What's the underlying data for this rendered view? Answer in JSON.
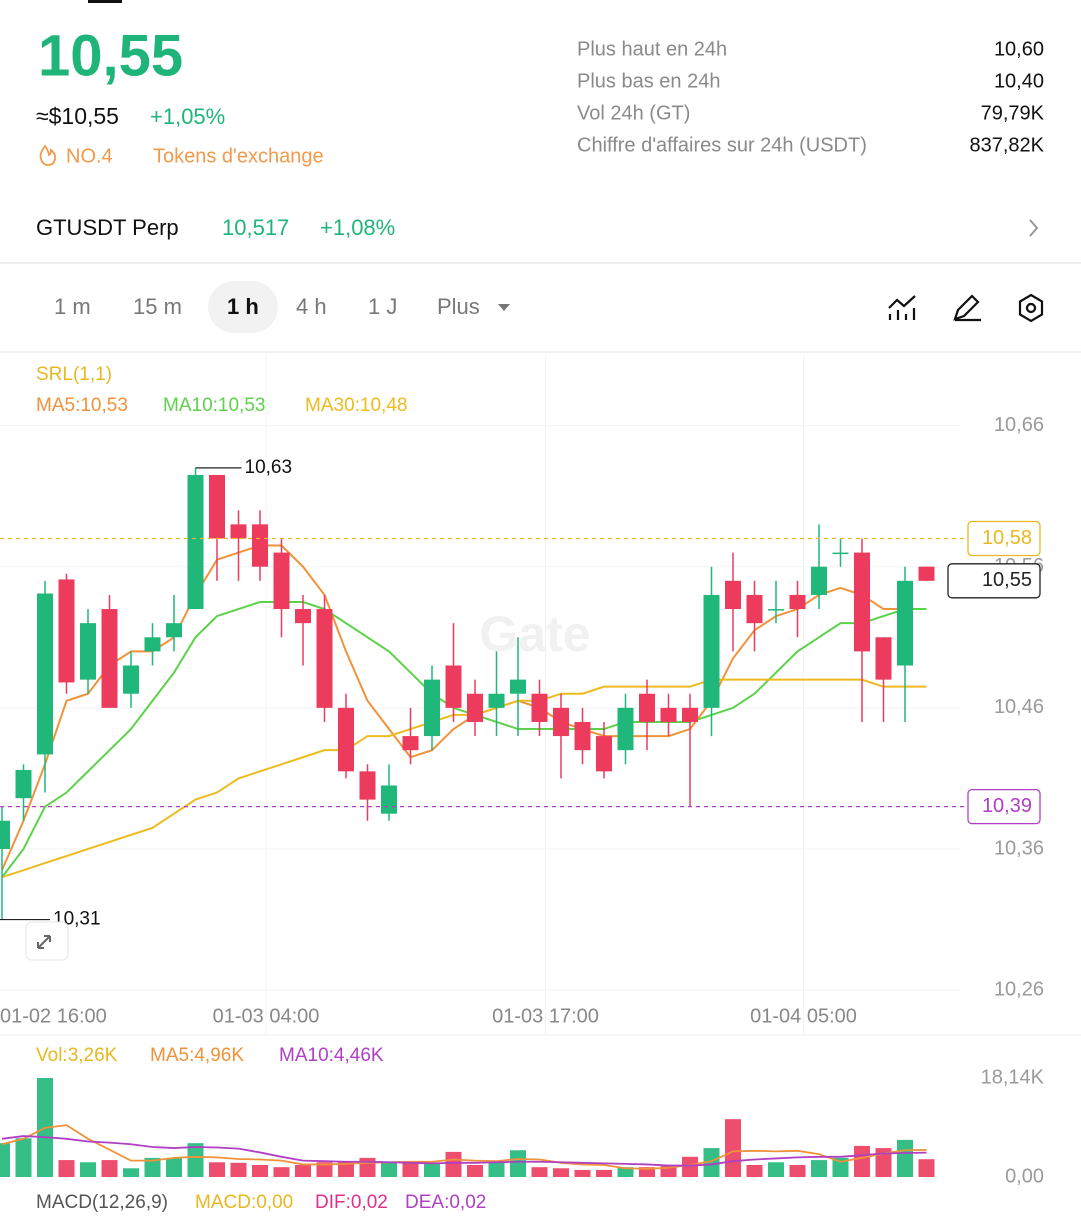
{
  "header": {
    "price": "10,55",
    "usd": "≈$10,55",
    "change": "+1,05%",
    "rank": "NO.4",
    "category": "Tokens d'exchange"
  },
  "stats": [
    {
      "label": "Plus haut en 24h",
      "value": "10,60"
    },
    {
      "label": "Plus bas en 24h",
      "value": "10,40"
    },
    {
      "label": "Vol 24h (GT)",
      "value": "79,79K"
    },
    {
      "label": "Chiffre d'affaires sur 24h (USDT)",
      "value": "837,82K"
    }
  ],
  "perp": {
    "name": "GTUSDT Perp",
    "price": "10,517",
    "change": "+1,08%"
  },
  "intervals": [
    "1 m",
    "15 m",
    "1 h",
    "4 h",
    "1 J",
    "Plus"
  ],
  "selected_interval": "1 h",
  "chart_data": {
    "type": "candlestick",
    "watermark": "Gate",
    "indicator": "SRL(1,1)",
    "up_color": "#20b77a",
    "down_color": "#ec3b5d",
    "grid": true,
    "categories": [
      "01-02 16:00",
      null,
      null,
      null,
      null,
      null,
      null,
      null,
      null,
      null,
      null,
      null,
      "01-03 04:00",
      null,
      null,
      null,
      null,
      null,
      null,
      null,
      null,
      null,
      null,
      null,
      null,
      "01-03 17:00",
      null,
      null,
      null,
      null,
      null,
      null,
      null,
      null,
      null,
      null,
      null,
      "01-04 05:00",
      null,
      null,
      null,
      null,
      null,
      null
    ],
    "open": [
      10.36,
      10.396,
      10.427,
      10.551,
      10.48,
      10.53,
      10.47,
      10.5,
      10.51,
      10.53,
      10.625,
      10.59,
      10.59,
      10.57,
      10.53,
      10.53,
      10.46,
      10.415,
      10.385,
      10.44,
      10.44,
      10.49,
      10.47,
      10.46,
      10.47,
      10.47,
      10.46,
      10.45,
      10.44,
      10.43,
      10.47,
      10.46,
      10.46,
      10.46,
      10.55,
      10.54,
      10.53,
      10.54,
      10.54,
      10.57,
      10.57,
      10.51,
      10.49,
      10.56
    ],
    "high": [
      10.39,
      10.42,
      10.55,
      10.555,
      10.53,
      10.54,
      10.5,
      10.52,
      10.54,
      10.63,
      10.625,
      10.6,
      10.6,
      10.58,
      10.54,
      10.54,
      10.47,
      10.42,
      10.42,
      10.46,
      10.49,
      10.52,
      10.48,
      10.5,
      10.51,
      10.48,
      10.47,
      10.46,
      10.45,
      10.47,
      10.48,
      10.47,
      10.47,
      10.56,
      10.57,
      10.55,
      10.55,
      10.55,
      10.59,
      10.58,
      10.58,
      10.51,
      10.56,
      10.56
    ],
    "low": [
      10.31,
      10.38,
      10.4,
      10.47,
      10.47,
      10.46,
      10.46,
      10.49,
      10.5,
      10.53,
      10.55,
      10.55,
      10.55,
      10.51,
      10.49,
      10.45,
      10.41,
      10.38,
      10.38,
      10.42,
      10.43,
      10.45,
      10.44,
      10.44,
      10.44,
      10.44,
      10.41,
      10.42,
      10.41,
      10.42,
      10.43,
      10.44,
      10.39,
      10.44,
      10.5,
      10.5,
      10.52,
      10.51,
      10.53,
      10.56,
      10.45,
      10.45,
      10.45,
      10.55
    ],
    "close": [
      10.38,
      10.416,
      10.541,
      10.478,
      10.52,
      10.46,
      10.49,
      10.51,
      10.52,
      10.625,
      10.58,
      10.58,
      10.56,
      10.53,
      10.52,
      10.46,
      10.415,
      10.395,
      10.405,
      10.43,
      10.48,
      10.46,
      10.45,
      10.47,
      10.48,
      10.45,
      10.44,
      10.43,
      10.415,
      10.46,
      10.45,
      10.45,
      10.45,
      10.54,
      10.53,
      10.52,
      10.53,
      10.53,
      10.56,
      10.57,
      10.5,
      10.48,
      10.55,
      10.55
    ],
    "ma_lines": [
      {
        "label": "MA5:10,53",
        "color": "#f0923a",
        "values": [
          10.345,
          10.38,
          10.42,
          10.465,
          10.47,
          10.49,
          10.5,
          10.5,
          10.51,
          10.54,
          10.565,
          10.57,
          10.575,
          10.575,
          10.56,
          10.54,
          10.5,
          10.465,
          10.445,
          10.425,
          10.43,
          10.445,
          10.455,
          10.46,
          10.465,
          10.46,
          10.45,
          10.445,
          10.44,
          10.44,
          10.44,
          10.44,
          10.445,
          10.465,
          10.495,
          10.515,
          10.525,
          10.53,
          10.54,
          10.545,
          10.54,
          10.53,
          10.53,
          10.53
        ]
      },
      {
        "label": "MA10:10,53",
        "color": "#5cd24a",
        "values": [
          10.34,
          10.36,
          10.39,
          10.4,
          10.415,
          10.43,
          10.445,
          10.465,
          10.485,
          10.51,
          10.525,
          10.53,
          10.535,
          10.535,
          10.535,
          10.53,
          10.52,
          10.51,
          10.5,
          10.485,
          10.47,
          10.46,
          10.455,
          10.45,
          10.445,
          10.445,
          10.445,
          10.445,
          10.445,
          10.45,
          10.45,
          10.45,
          10.45,
          10.455,
          10.46,
          10.47,
          10.485,
          10.5,
          10.51,
          10.52,
          10.52,
          10.525,
          10.53,
          10.53
        ]
      },
      {
        "label": "MA30:10,48",
        "color": "#edbb1e",
        "values": [
          10.34,
          10.345,
          10.35,
          10.355,
          10.36,
          10.365,
          10.37,
          10.375,
          10.385,
          10.395,
          10.4,
          10.41,
          10.415,
          10.42,
          10.425,
          10.43,
          10.43,
          10.44,
          10.44,
          10.445,
          10.45,
          10.455,
          10.455,
          10.46,
          10.465,
          10.465,
          10.47,
          10.47,
          10.475,
          10.475,
          10.475,
          10.475,
          10.475,
          10.48,
          10.48,
          10.48,
          10.48,
          10.48,
          10.48,
          10.48,
          10.48,
          10.475,
          10.475,
          10.475
        ]
      }
    ],
    "ylim": [
      10.253,
      10.71
    ],
    "yticks": [
      {
        "value": 10.66,
        "label": "10,66"
      },
      {
        "value": 10.56,
        "label": "10,56"
      },
      {
        "value": 10.46,
        "label": "10,46"
      },
      {
        "value": 10.36,
        "label": "10,36"
      },
      {
        "value": 10.26,
        "label": "10,26"
      }
    ],
    "price_lines": [
      {
        "value": 10.58,
        "label": "10,58",
        "color": "#e8b820",
        "dashed": true
      },
      {
        "value": 10.39,
        "label": "10,39",
        "color": "#b03fc4",
        "dashed": true
      },
      {
        "value": 10.55,
        "label": "10,55",
        "color": "#222222",
        "dashed": false
      }
    ],
    "annotations": [
      {
        "value": 10.63,
        "label": "10,63"
      },
      {
        "value": 10.31,
        "label": "10,31"
      }
    ],
    "volume": {
      "legend": [
        {
          "label": "Vol:3,26K",
          "color": "#e8b820"
        },
        {
          "label": "MA5:4,96K",
          "color": "#f0923a"
        },
        {
          "label": "MA10:4,46K",
          "color": "#b03fc4"
        }
      ],
      "values": [
        6.2,
        7.1,
        18.14,
        3.1,
        2.7,
        3.1,
        1.6,
        3.5,
        3.5,
        6.2,
        2.7,
        2.6,
        2.2,
        1.8,
        2.2,
        2.7,
        2.7,
        3.5,
        2.6,
        2.7,
        2.6,
        4.6,
        2.2,
        2.7,
        4.9,
        1.8,
        1.6,
        1.3,
        1.3,
        1.8,
        1.8,
        2.0,
        3.7,
        5.3,
        10.6,
        2.2,
        2.7,
        2.2,
        3.1,
        3.5,
        5.7,
        5.3,
        6.8,
        3.26
      ],
      "ma_lines": [
        {
          "color": "#f0923a",
          "values": [
            6,
            7,
            9,
            9.5,
            7,
            5,
            3,
            3,
            3.5,
            3.7,
            3.6,
            3.3,
            3.2,
            3.0,
            2.3,
            2.3,
            2.4,
            2.6,
            2.7,
            2.8,
            2.8,
            3.2,
            3.0,
            2.9,
            3.3,
            3.2,
            2.6,
            2.3,
            2.2,
            1.6,
            1.5,
            1.7,
            2.2,
            2.9,
            4.7,
            4.8,
            4.7,
            4.8,
            4.2,
            2.8,
            3.5,
            4.3,
            4.9,
            4.96
          ]
        },
        {
          "color": "#b03fc4",
          "values": [
            7,
            7.5,
            7.3,
            7.0,
            6.5,
            6.3,
            6.0,
            5.5,
            5.3,
            5.5,
            5.4,
            5.2,
            4.5,
            3.7,
            3.0,
            2.9,
            2.8,
            2.8,
            2.7,
            2.6,
            2.5,
            2.6,
            2.6,
            2.7,
            2.8,
            2.8,
            2.7,
            2.6,
            2.5,
            2.4,
            2.3,
            2.1,
            2.1,
            2.3,
            2.9,
            3.2,
            3.4,
            3.6,
            3.7,
            3.7,
            4.0,
            4.3,
            4.4,
            4.46
          ]
        }
      ],
      "ylim": [
        0,
        18.14
      ],
      "yticks": [
        {
          "value": 18.14,
          "label": "18,14K"
        },
        {
          "value": 0,
          "label": "0,00"
        }
      ]
    },
    "macd": [
      {
        "label": "MACD(12,26,9)",
        "color": "#555555"
      },
      {
        "label": "MACD:0,00",
        "color": "#e8b820"
      },
      {
        "label": "DIF:0,02",
        "color": "#e0308a"
      },
      {
        "label": "DEA:0,02",
        "color": "#b03fc4"
      }
    ]
  }
}
